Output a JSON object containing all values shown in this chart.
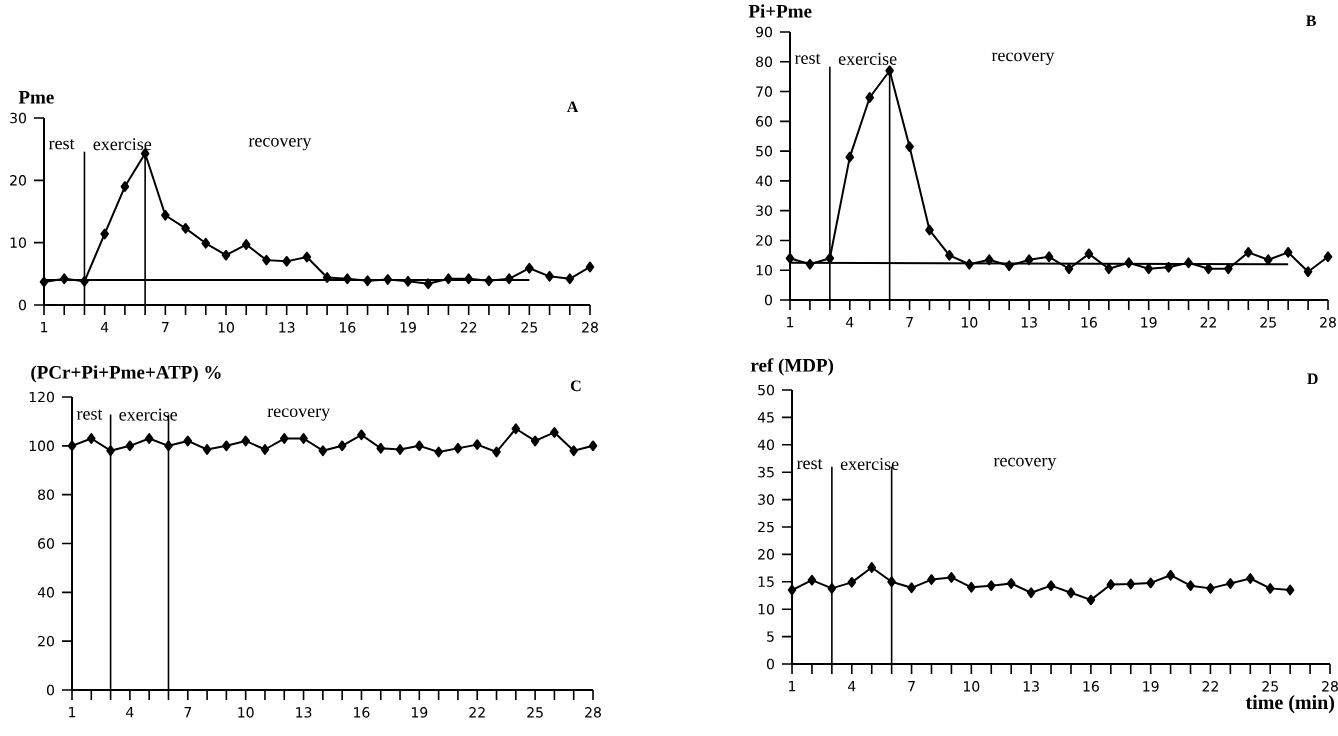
{
  "chart_data": [
    {
      "type": "line",
      "title": "Pme",
      "x": [
        1,
        2,
        3,
        4,
        5,
        6,
        7,
        8,
        9,
        10,
        11,
        12,
        13,
        14,
        15,
        16,
        17,
        18,
        19,
        20,
        21,
        22,
        23,
        24,
        25,
        26,
        27,
        28
      ],
      "xlim": [
        1,
        28
      ],
      "ylim": [
        0,
        30
      ],
      "yticks": [
        0,
        10,
        20,
        30
      ],
      "xticks": [
        1,
        {
          "value": 2,
          "label": null
        },
        {
          "value": 3,
          "label": null
        },
        4,
        {
          "value": 5,
          "label": null
        },
        {
          "value": 6,
          "label": null
        },
        7,
        {
          "value": 8,
          "label": null
        },
        {
          "value": 9,
          "label": null
        },
        10,
        {
          "value": 11,
          "label": null
        },
        {
          "value": 12,
          "label": null
        },
        13,
        {
          "value": 14,
          "label": null
        },
        {
          "value": 15,
          "label": null
        },
        16,
        {
          "value": 17,
          "label": null
        },
        {
          "value": 18,
          "label": null
        },
        19,
        {
          "value": 20,
          "label": null
        },
        {
          "value": 21,
          "label": null
        },
        22,
        {
          "value": 23,
          "label": null
        },
        {
          "value": 24,
          "label": null
        },
        25,
        {
          "value": 26,
          "label": null
        },
        {
          "value": 27,
          "label": null
        },
        28
      ],
      "marker": "diamond",
      "series": [
        {
          "color": "#000000",
          "values": [
            3.7,
            4.2,
            3.8,
            11.4,
            19,
            24.3,
            14.4,
            12.3,
            9.9,
            8,
            9.7,
            7.2,
            7,
            7.7,
            4.4,
            4.2,
            3.9,
            4.1,
            3.8,
            3.4,
            4.2,
            4.2,
            3.9,
            4.2,
            5.9,
            4.6,
            4.2,
            6.1
          ]
        },
        {
          "type": "line",
          "marker": "none",
          "color": "#000000",
          "x": [
            1,
            25
          ],
          "values": [
            4,
            4
          ]
        }
      ],
      "ref_lines": [
        {
          "axis": "x",
          "value": 3
        },
        {
          "axis": "x",
          "value": 6
        }
      ],
      "annotations": [
        "rest",
        "exercise",
        "recovery",
        "A"
      ]
    },
    {
      "type": "line",
      "title": "Pi+Pme",
      "x": [
        1,
        2,
        3,
        4,
        5,
        6,
        7,
        8,
        9,
        10,
        11,
        12,
        13,
        14,
        15,
        16,
        17,
        18,
        19,
        20,
        21,
        22,
        23,
        24,
        25,
        26,
        27,
        28
      ],
      "xlim": [
        1,
        28
      ],
      "ylim": [
        0,
        90
      ],
      "yticks": [
        0,
        10,
        20,
        30,
        40,
        50,
        60,
        70,
        80,
        90
      ],
      "xticks": [
        1,
        {
          "value": 2,
          "label": null
        },
        {
          "value": 3,
          "label": null
        },
        4,
        {
          "value": 5,
          "label": null
        },
        {
          "value": 6,
          "label": null
        },
        7,
        {
          "value": 8,
          "label": null
        },
        {
          "value": 9,
          "label": null
        },
        10,
        {
          "value": 11,
          "label": null
        },
        {
          "value": 12,
          "label": null
        },
        13,
        {
          "value": 14,
          "label": null
        },
        {
          "value": 15,
          "label": null
        },
        16,
        {
          "value": 17,
          "label": null
        },
        {
          "value": 18,
          "label": null
        },
        19,
        {
          "value": 20,
          "label": null
        },
        {
          "value": 21,
          "label": null
        },
        22,
        {
          "value": 23,
          "label": null
        },
        {
          "value": 24,
          "label": null
        },
        25,
        {
          "value": 26,
          "label": null
        },
        {
          "value": 27,
          "label": null
        },
        28
      ],
      "marker": "diamond",
      "series": [
        {
          "color": "#000000",
          "values": [
            14,
            12,
            14,
            48,
            68,
            77,
            51.5,
            23.5,
            15,
            12,
            13.5,
            11.5,
            13.5,
            14.5,
            10.5,
            15.5,
            10.5,
            12.5,
            10.5,
            11,
            12.5,
            10.5,
            10.5,
            16,
            13.5,
            16,
            9.5,
            14.5
          ]
        },
        {
          "type": "line",
          "marker": "none",
          "color": "#000000",
          "x": [
            1,
            26
          ],
          "values": [
            12.5,
            12
          ]
        }
      ],
      "ref_lines": [
        {
          "axis": "x",
          "value": 3
        },
        {
          "axis": "x",
          "value": 6
        }
      ],
      "annotations": [
        "rest",
        "exercise",
        "recovery",
        "B"
      ]
    },
    {
      "type": "line",
      "title": "(PCr+Pi+Pme+ATP) %",
      "x": [
        1,
        2,
        3,
        4,
        5,
        6,
        7,
        8,
        9,
        10,
        11,
        12,
        13,
        14,
        15,
        16,
        17,
        18,
        19,
        20,
        21,
        22,
        23,
        24,
        25,
        26,
        27,
        28
      ],
      "xlim": [
        1,
        28
      ],
      "ylim": [
        0,
        120
      ],
      "yticks": [
        0,
        20,
        40,
        60,
        80,
        100,
        120
      ],
      "xticks": [
        1,
        {
          "value": 2,
          "label": null
        },
        {
          "value": 3,
          "label": null
        },
        4,
        {
          "value": 5,
          "label": null
        },
        {
          "value": 6,
          "label": null
        },
        7,
        {
          "value": 8,
          "label": null
        },
        {
          "value": 9,
          "label": null
        },
        10,
        {
          "value": 11,
          "label": null
        },
        {
          "value": 12,
          "label": null
        },
        13,
        {
          "value": 14,
          "label": null
        },
        {
          "value": 15,
          "label": null
        },
        16,
        {
          "value": 17,
          "label": null
        },
        {
          "value": 18,
          "label": null
        },
        19,
        {
          "value": 20,
          "label": null
        },
        {
          "value": 21,
          "label": null
        },
        22,
        {
          "value": 23,
          "label": null
        },
        {
          "value": 24,
          "label": null
        },
        25,
        {
          "value": 26,
          "label": null
        },
        {
          "value": 27,
          "label": null
        },
        28
      ],
      "marker": "diamond",
      "series": [
        {
          "color": "#000000",
          "values": [
            100,
            103,
            98,
            100,
            103,
            100,
            102,
            98.5,
            100,
            102,
            98.5,
            103,
            103,
            98,
            100,
            104.5,
            99,
            98.5,
            100,
            97.5,
            99,
            100.5,
            97.5,
            107,
            102,
            105.5,
            98,
            100
          ]
        }
      ],
      "ref_lines": [
        {
          "axis": "x",
          "value": 3
        },
        {
          "axis": "x",
          "value": 6
        }
      ],
      "annotations": [
        "rest",
        "exercise",
        "recovery",
        "C"
      ]
    },
    {
      "type": "line",
      "title": "ref (MDP)",
      "xlabel": "time (min)",
      "x": [
        1,
        2,
        3,
        4,
        5,
        6,
        7,
        8,
        9,
        10,
        11,
        12,
        13,
        14,
        15,
        16,
        17,
        18,
        19,
        20,
        21,
        22,
        23,
        24,
        25,
        26
      ],
      "xlim": [
        1,
        28
      ],
      "ylim": [
        0,
        50
      ],
      "yticks": [
        0,
        5,
        10,
        15,
        20,
        25,
        30,
        35,
        40,
        45,
        50
      ],
      "xticks": [
        1,
        {
          "value": 2,
          "label": null
        },
        {
          "value": 3,
          "label": null
        },
        4,
        {
          "value": 5,
          "label": null
        },
        {
          "value": 6,
          "label": null
        },
        7,
        {
          "value": 8,
          "label": null
        },
        {
          "value": 9,
          "label": null
        },
        10,
        {
          "value": 11,
          "label": null
        },
        {
          "value": 12,
          "label": null
        },
        13,
        {
          "value": 14,
          "label": null
        },
        {
          "value": 15,
          "label": null
        },
        16,
        {
          "value": 17,
          "label": null
        },
        {
          "value": 18,
          "label": null
        },
        19,
        {
          "value": 20,
          "label": null
        },
        {
          "value": 21,
          "label": null
        },
        22,
        {
          "value": 23,
          "label": null
        },
        {
          "value": 24,
          "label": null
        },
        25,
        {
          "value": 26,
          "label": null
        },
        {
          "value": 27,
          "label": null
        },
        28
      ],
      "marker": "diamond",
      "series": [
        {
          "color": "#000000",
          "values": [
            13.5,
            15.3,
            13.8,
            14.9,
            17.6,
            15,
            13.9,
            15.4,
            15.8,
            14,
            14.3,
            14.7,
            13,
            14.3,
            13,
            11.7,
            14.5,
            14.6,
            14.8,
            16.2,
            14.3,
            13.8,
            14.7,
            15.6,
            13.8,
            13.5
          ]
        }
      ],
      "ref_lines": [
        {
          "axis": "x",
          "value": 3
        },
        {
          "axis": "x",
          "value": 6
        }
      ],
      "annotations": [
        "rest",
        "exercise",
        "recovery",
        "D"
      ]
    }
  ]
}
